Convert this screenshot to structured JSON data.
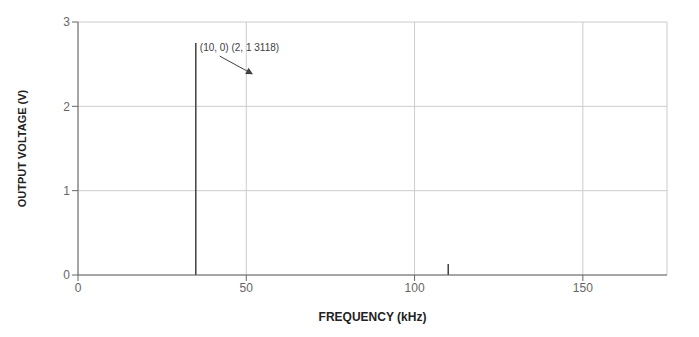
{
  "chart_data": {
    "type": "stem",
    "xlabel": "FREQUENCY (kHz)",
    "ylabel": "OUTPUT VOLTAGE (V)",
    "x": [
      35,
      110
    ],
    "values": [
      2.75,
      0.13
    ],
    "color": "#404040",
    "xlim": [
      0,
      175
    ],
    "ylim": [
      0,
      3
    ],
    "xticks": [
      0,
      50,
      100,
      150
    ],
    "yticks": [
      0,
      1,
      2,
      3
    ],
    "grid": true,
    "annotations": [
      {
        "text": "(10, 0) (2, 1 3118)",
        "x": 35,
        "y": 2.75,
        "arrow_x": 52,
        "arrow_y": 2.38
      }
    ]
  }
}
